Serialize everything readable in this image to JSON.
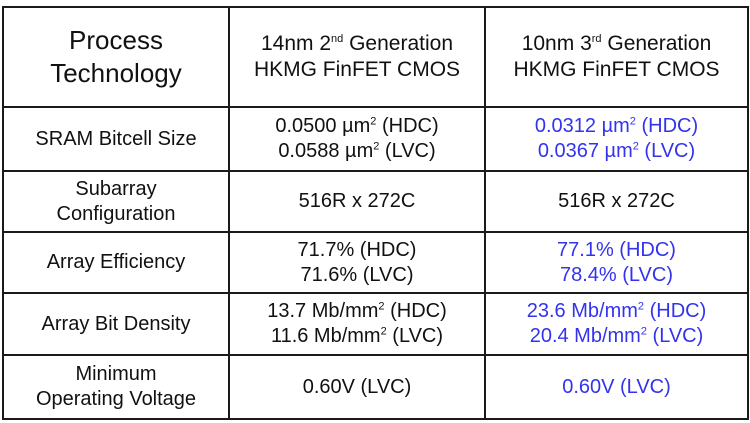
{
  "table": {
    "header": {
      "col1": {
        "line1": "Process",
        "line2": "Technology"
      },
      "col2": {
        "l1_pre": "14nm 2",
        "l1_sup": "nd",
        "l1_post": " Generation",
        "line2": "HKMG FinFET CMOS"
      },
      "col3": {
        "l1_pre": "10nm 3",
        "l1_sup": "rd",
        "l1_post": " Generation",
        "line2": "HKMG FinFET CMOS"
      }
    },
    "rows": [
      {
        "label_line1": "SRAM Bitcell Size",
        "label_line2": "",
        "c2_l1_pre": "0.0500 µm",
        "c2_l1_sup": "2",
        "c2_l1_post": " (HDC)",
        "c2_l2_pre": "0.0588 µm",
        "c2_l2_sup": "2",
        "c2_l2_post": " (LVC)",
        "c3_l1_pre": "0.0312 µm",
        "c3_l1_sup": "2",
        "c3_l1_post": " (HDC)",
        "c3_l2_pre": "0.0367 µm",
        "c3_l2_sup": "2",
        "c3_l2_post": " (LVC)"
      },
      {
        "label_line1": "Subarray",
        "label_line2": "Configuration",
        "c2": "516R x 272C",
        "c3": "516R x 272C"
      },
      {
        "label_line1": "Array Efficiency",
        "label_line2": "",
        "c2_l1": "71.7% (HDC)",
        "c2_l2": "71.6% (LVC)",
        "c3_l1": "77.1% (HDC)",
        "c3_l2": "78.4% (LVC)"
      },
      {
        "label_line1": "Array Bit Density",
        "label_line2": "",
        "c2_l1_pre": "13.7 Mb/mm",
        "c2_l1_sup": "2",
        "c2_l1_post": " (HDC)",
        "c2_l2_pre": "11.6 Mb/mm",
        "c2_l2_sup": "2",
        "c2_l2_post": " (LVC)",
        "c3_l1_pre": "23.6 Mb/mm",
        "c3_l1_sup": "2",
        "c3_l1_post": " (HDC)",
        "c3_l2_pre": "20.4 Mb/mm",
        "c3_l2_sup": "2",
        "c3_l2_post": " (LVC)"
      },
      {
        "label_line1": "Minimum",
        "label_line2": "Operating Voltage",
        "c2": "0.60V (LVC)",
        "c3": "0.60V (LVC)"
      }
    ],
    "colors": {
      "highlight": "#3333ee",
      "text": "#111111",
      "border": "#1a1a1a"
    }
  }
}
